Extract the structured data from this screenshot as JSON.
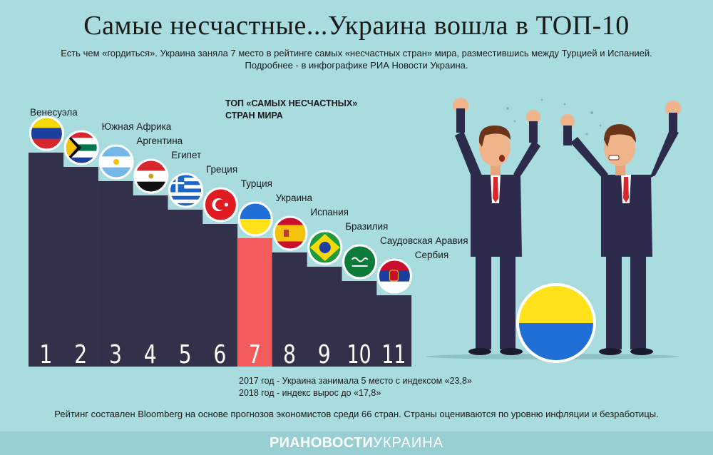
{
  "title": "Самые несчастные...Украина вошла в ТОП-10",
  "subtitle_line1": "Есть чем «гордиться». Украина заняла 7 место в рейтинге самых «несчастных стран» мира, разместившись между Турцией и Испанией.",
  "subtitle_line2": "Подробнее - в инфографике РИА Новости Украина.",
  "chart_heading_line1": "ТОП «САМЫХ НЕСЧАСТНЫХ»",
  "chart_heading_line2": "СТРАН МИРА",
  "note_line1": "2017 год - Украина занимала 5 место с индексом «23,8»",
  "note_line2": "2018 год - индекс вырос до «17,8»",
  "footer": "Рейтинг составлен Bloomberg на основе прогнозов экономистов среди 66 стран. Страны оцениваются по уровню инфляции и безработицы.",
  "brand_part1": "РИАНОВОСТИ",
  "brand_part2": "УКРАИНА",
  "colors": {
    "background": "#a9dcdf",
    "bar": "#33314a",
    "highlight_bar": "#f45b5b",
    "suit": "#2d2b4b",
    "ukraine_blue": "#1f6fd6",
    "ukraine_yellow": "#ffe21a"
  },
  "chart_data": {
    "type": "bar",
    "title": "ТОП «САМЫХ НЕСЧАСТНЫХ» СТРАН МИРА",
    "categories": [
      "Венесуэла",
      "Южная Африка",
      "Аргентина",
      "Египет",
      "Греция",
      "Турция",
      "Украина",
      "Испания",
      "Бразилия",
      "Саудовская Аравия",
      "Сербия"
    ],
    "ranks": [
      "1",
      "2",
      "3",
      "4",
      "5",
      "6",
      "7",
      "8",
      "9",
      "10",
      "11"
    ],
    "highlight": "Украина",
    "flag_icons": [
      "venezuela-flag-icon",
      "south-africa-flag-icon",
      "argentina-flag-icon",
      "egypt-flag-icon",
      "greece-flag-icon",
      "turkey-flag-icon",
      "ukraine-flag-icon",
      "spain-flag-icon",
      "brazil-flag-icon",
      "saudi-arabia-flag-icon",
      "serbia-flag-icon"
    ],
    "xlabel": "",
    "ylabel": "",
    "grid": false
  }
}
